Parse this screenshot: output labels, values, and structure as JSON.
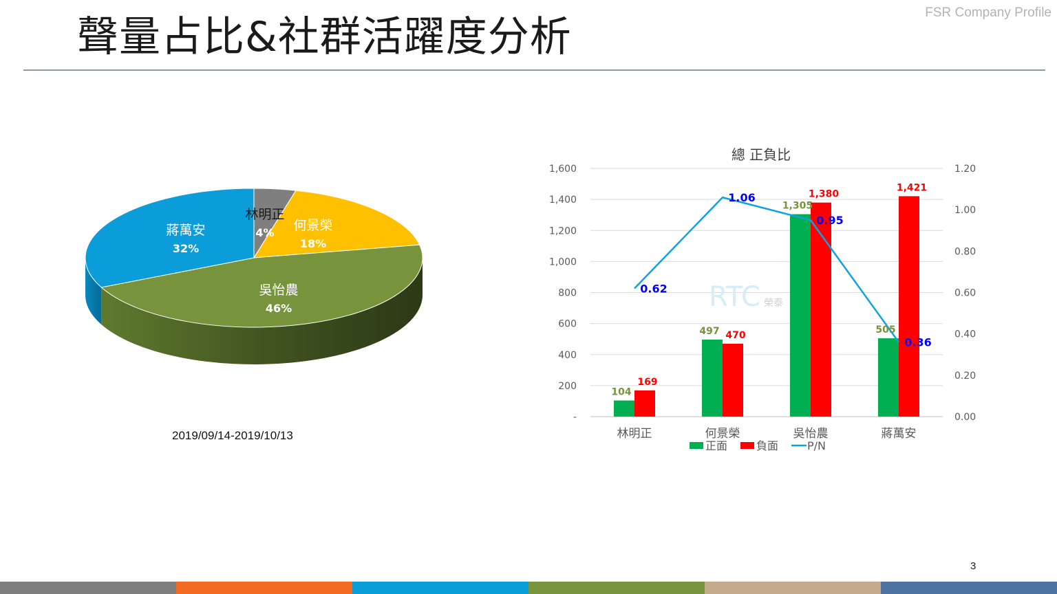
{
  "header": {
    "title": "聲量占比&社群活躍度分析",
    "brand": "FSR Company Profile"
  },
  "pie": {
    "date_range": "2019/09/14-2019/10/13",
    "slices": [
      {
        "name": "林明正",
        "percent": "4%",
        "value": 4,
        "color": "#7f7f7f"
      },
      {
        "name": "何景榮",
        "percent": "18%",
        "value": 18,
        "color": "#ffc000"
      },
      {
        "name": "吳怡農",
        "percent": "46%",
        "value": 46,
        "color": "#77933c"
      },
      {
        "name": "蔣萬安",
        "percent": "32%",
        "value": 32,
        "color": "#0a9dd9"
      }
    ]
  },
  "chart_data": {
    "type": "bar",
    "title": "總 正負比",
    "categories": [
      "林明正",
      "何景榮",
      "吳怡農",
      "蔣萬安"
    ],
    "series": [
      {
        "name": "正面",
        "type": "bar",
        "axis": "left",
        "values": [
          104,
          497,
          1305,
          505
        ],
        "labels": [
          "104",
          "497",
          "1,305",
          "505"
        ],
        "color": "#00b050",
        "label_color": "#77933c"
      },
      {
        "name": "負面",
        "type": "bar",
        "axis": "left",
        "values": [
          169,
          470,
          1380,
          1421
        ],
        "labels": [
          "169",
          "470",
          "1,380",
          "1,421"
        ],
        "color": "#ff0000",
        "label_color": "#ff0000"
      },
      {
        "name": "P/N",
        "type": "line",
        "axis": "right",
        "values": [
          0.62,
          1.06,
          0.95,
          0.36
        ],
        "labels": [
          "0.62",
          "1.06",
          "0.95",
          "0.36"
        ],
        "color": "#0ea2e0",
        "label_color": "#0000ff"
      }
    ],
    "y_left": {
      "min": 0,
      "max": 1600,
      "ticks": [
        "-",
        "200",
        "400",
        "600",
        "800",
        "1,000",
        "1,200",
        "1,400",
        "1,600"
      ]
    },
    "y_right": {
      "min": 0,
      "max": 1.2,
      "ticks": [
        "0.00",
        "0.20",
        "0.40",
        "0.60",
        "0.80",
        "1.00",
        "1.20"
      ]
    },
    "grid": true,
    "legend": "bottom",
    "watermark": "RTC 榮泰"
  },
  "footer": {
    "page": "3",
    "colors": [
      "#7f7f7f",
      "#f26b21",
      "#0a9dd9",
      "#77933c",
      "#c4ab8c",
      "#4e73a3"
    ]
  }
}
